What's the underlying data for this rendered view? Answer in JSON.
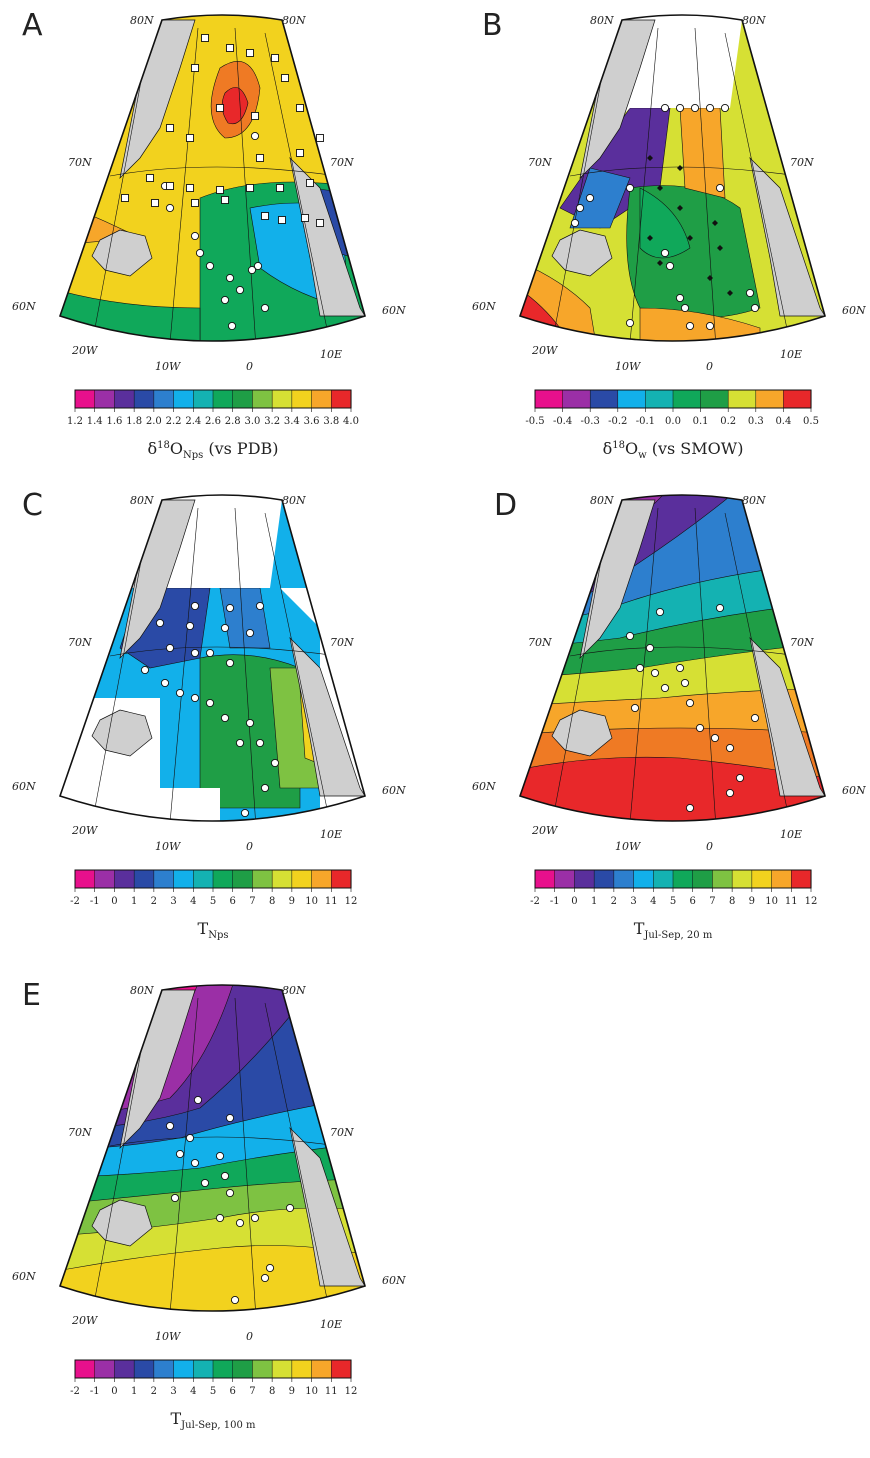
{
  "graticule": {
    "lat_80": "80N",
    "lat_70": "70N",
    "lat_60": "60N",
    "lon_20w": "20W",
    "lon_10w": "10W",
    "lon_0": "0",
    "lon_10e": "10E"
  },
  "colors": {
    "land": "#cfcfcf",
    "scale": [
      "#e8108c",
      "#9b2fa6",
      "#5a2f9c",
      "#2a4aa6",
      "#2d7fce",
      "#12b0ea",
      "#14b2b2",
      "#10a85a",
      "#1f9e46",
      "#7ec242",
      "#d6e034",
      "#f2d21e",
      "#f7a62a",
      "#ef7a24",
      "#e8282a"
    ]
  },
  "panels": [
    {
      "letter": "A",
      "title_main": "δ",
      "title_sup": "18",
      "title_rest": "O",
      "title_sub": "Nps",
      "title_tail": " (vs PDB)",
      "ticks": [
        "1.2",
        "1.4",
        "1.6",
        "1.8",
        "2.0",
        "2.2",
        "2.4",
        "2.6",
        "2.8",
        "3.0",
        "3.2",
        "3.4",
        "3.6",
        "3.8",
        "4.0"
      ],
      "bar_colors": [
        0,
        1,
        2,
        3,
        4,
        5,
        6,
        7,
        8,
        9,
        10,
        11,
        12,
        14
      ]
    },
    {
      "letter": "B",
      "title_main": "δ",
      "title_sup": "18",
      "title_rest": "O",
      "title_sub": "w",
      "title_tail": " (vs SMOW)",
      "ticks": [
        "-0.5",
        "-0.4",
        "-0.3",
        "-0.2",
        "-0.1",
        "0.0",
        "0.1",
        "0.2",
        "0.3",
        "0.4",
        "0.5"
      ],
      "bar_colors": [
        0,
        1,
        3,
        5,
        6,
        7,
        8,
        10,
        12,
        14
      ]
    },
    {
      "letter": "C",
      "title_main": "T",
      "title_sup": "",
      "title_rest": "",
      "title_sub": "Nps",
      "title_tail": "",
      "ticks": [
        "-2",
        "-1",
        "0",
        "1",
        "2",
        "3",
        "4",
        "5",
        "6",
        "7",
        "8",
        "9",
        "10",
        "11",
        "12"
      ],
      "bar_colors": [
        0,
        1,
        2,
        3,
        4,
        5,
        6,
        7,
        8,
        9,
        10,
        11,
        12,
        14
      ]
    },
    {
      "letter": "D",
      "title_main": "T",
      "title_sup": "",
      "title_rest": "",
      "title_sub": "Jul-Sep, 20 m",
      "title_tail": "",
      "ticks": [
        "-2",
        "-1",
        "0",
        "1",
        "2",
        "3",
        "4",
        "5",
        "6",
        "7",
        "8",
        "9",
        "10",
        "11",
        "12"
      ],
      "bar_colors": [
        0,
        1,
        2,
        3,
        4,
        5,
        6,
        7,
        8,
        9,
        10,
        11,
        12,
        14
      ]
    },
    {
      "letter": "E",
      "title_main": "T",
      "title_sup": "",
      "title_rest": "",
      "title_sub": "Jul-Sep, 100 m",
      "title_tail": "",
      "ticks": [
        "-2",
        "-1",
        "0",
        "1",
        "2",
        "3",
        "4",
        "5",
        "6",
        "7",
        "8",
        "9",
        "10",
        "11",
        "12"
      ],
      "bar_colors": [
        0,
        1,
        2,
        3,
        4,
        5,
        6,
        7,
        8,
        9,
        10,
        11,
        12,
        14
      ]
    }
  ]
}
